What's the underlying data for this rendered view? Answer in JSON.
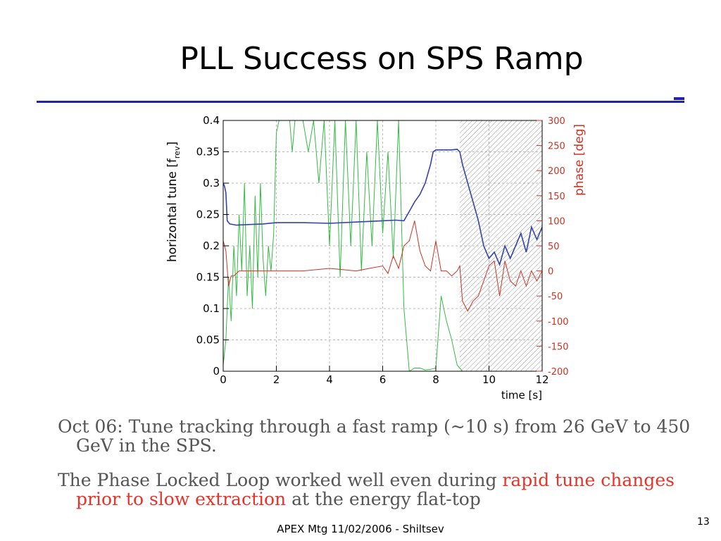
{
  "slide": {
    "title": "PLL Success on SPS Ramp",
    "paragraph1": "Oct 06: Tune tracking through a fast ramp (~10 s) from 26 GeV to 450 GeV in the SPS.",
    "paragraph2_a": "The Phase Locked Loop worked well even during ",
    "paragraph2_highlight": "rapid tune changes prior to slow extraction",
    "paragraph2_b": " at the energy flat-top",
    "footer": "APEX Mtg 11/02/2006 - Shiltsev",
    "page_number": "13",
    "accent_color": "#2222aa",
    "highlight_color": "#e8332a"
  },
  "chart_data": {
    "type": "line",
    "xlabel": "time [s]",
    "ylabel": "horizontal tune [f",
    "ylabel_sub": "rev",
    "ylabel_end": "]",
    "y2label": "phase [deg]",
    "xlim": [
      0,
      12
    ],
    "ylim": [
      0,
      0.4
    ],
    "y2lim": [
      -200,
      300
    ],
    "x_ticks": [
      "0",
      "2",
      "4",
      "6",
      "8",
      "10",
      "12"
    ],
    "y_ticks": [
      "0",
      "0.05",
      "0.1",
      "0.15",
      "0.2",
      "0.25",
      "0.3",
      "0.35",
      "0.4"
    ],
    "y2_ticks": [
      "-200",
      "-150",
      "-100",
      "-50",
      "0",
      "50",
      "100",
      "150",
      "200",
      "250",
      "300"
    ],
    "grid": true,
    "shaded_region_x": [
      8.9,
      12
    ],
    "series": [
      {
        "color": "#3344aa",
        "axis": "left",
        "x": [
          0,
          0.05,
          0.1,
          0.15,
          0.25,
          0.5,
          1.0,
          1.5,
          2.0,
          3.0,
          4.0,
          5.0,
          6.0,
          6.5,
          6.8,
          7.0,
          7.2,
          7.4,
          7.6,
          7.8,
          7.9,
          8.0,
          8.3,
          8.6,
          8.8,
          8.9,
          9.0,
          9.2,
          9.4,
          9.6,
          9.8,
          10.0,
          10.2,
          10.4,
          10.6,
          10.8,
          11.0,
          11.2,
          11.4,
          11.6,
          11.8,
          12.0
        ],
        "y": [
          0.3,
          0.295,
          0.285,
          0.24,
          0.235,
          0.233,
          0.234,
          0.235,
          0.237,
          0.237,
          0.236,
          0.238,
          0.24,
          0.241,
          0.24,
          0.255,
          0.27,
          0.282,
          0.3,
          0.33,
          0.35,
          0.353,
          0.353,
          0.353,
          0.354,
          0.35,
          0.33,
          0.3,
          0.27,
          0.24,
          0.2,
          0.18,
          0.19,
          0.17,
          0.2,
          0.18,
          0.2,
          0.22,
          0.19,
          0.23,
          0.21,
          0.23
        ]
      },
      {
        "color": "#cc3322",
        "axis": "right",
        "x": [
          0,
          0.1,
          0.2,
          0.3,
          0.4,
          0.6,
          1.0,
          2.0,
          3.0,
          4.0,
          5.0,
          5.5,
          6.0,
          6.2,
          6.4,
          6.6,
          6.8,
          7.0,
          7.2,
          7.4,
          7.6,
          7.8,
          8.0,
          8.2,
          8.4,
          8.6,
          8.8,
          8.9,
          9.0,
          9.2,
          9.4,
          9.6,
          9.8,
          10.0,
          10.2,
          10.4,
          10.6,
          10.8,
          11.0,
          11.2,
          11.4,
          11.6,
          11.8,
          12.0
        ],
        "y": [
          60,
          40,
          -30,
          -10,
          -10,
          0,
          0,
          0,
          0,
          5,
          0,
          5,
          10,
          -5,
          30,
          5,
          50,
          60,
          100,
          40,
          10,
          0,
          60,
          0,
          0,
          -10,
          0,
          10,
          -60,
          -80,
          -60,
          -50,
          -20,
          10,
          20,
          -50,
          20,
          -20,
          -30,
          0,
          -30,
          0,
          -20,
          0
        ]
      },
      {
        "color": "#33bb44",
        "axis": "left",
        "x": [
          0,
          0.1,
          0.2,
          0.3,
          0.4,
          0.5,
          0.6,
          0.7,
          0.8,
          0.9,
          1.0,
          1.1,
          1.2,
          1.3,
          1.4,
          1.5,
          1.6,
          1.7,
          1.8,
          1.9,
          2.0,
          2.1,
          2.2,
          2.3,
          2.4,
          2.5,
          2.6,
          2.7,
          2.8,
          2.9,
          3.0,
          3.2,
          3.4,
          3.6,
          3.8,
          4.0,
          4.2,
          4.4,
          4.6,
          4.8,
          5.0,
          5.2,
          5.4,
          5.6,
          5.8,
          6.0,
          6.2,
          6.4,
          6.6,
          6.8,
          7.0,
          7.2,
          7.4,
          7.6,
          7.8,
          8.0,
          8.2,
          8.4,
          8.6,
          8.8,
          9.0,
          12.0
        ],
        "y": [
          0.01,
          0.05,
          0.15,
          0.08,
          0.2,
          0.12,
          0.25,
          0.16,
          0.3,
          0.12,
          0.2,
          0.1,
          0.28,
          0.15,
          0.3,
          0.18,
          0.12,
          0.2,
          0.16,
          0.22,
          0.38,
          0.4,
          0.4,
          0.4,
          0.4,
          0.4,
          0.35,
          0.4,
          0.4,
          0.4,
          0.4,
          0.35,
          0.4,
          0.3,
          0.4,
          0.2,
          0.4,
          0.15,
          0.4,
          0.2,
          0.4,
          0.16,
          0.35,
          0.2,
          0.4,
          0.22,
          0.35,
          0.18,
          0.4,
          0.1,
          0.0,
          0.005,
          0.005,
          0.002,
          0.003,
          0.005,
          0.12,
          0.08,
          0.05,
          0.01,
          0.0,
          0.0
        ]
      }
    ]
  }
}
